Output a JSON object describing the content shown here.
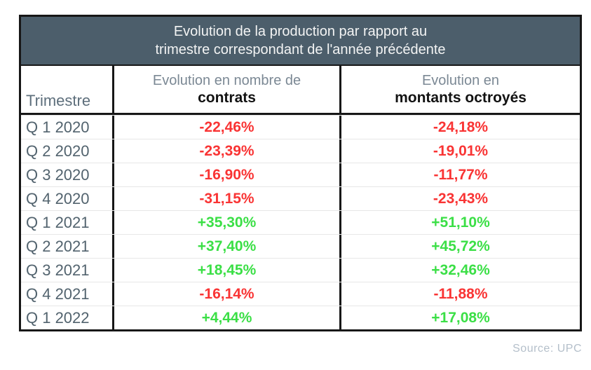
{
  "table": {
    "title_line1": "Evolution de la production par rapport au",
    "title_line2": "trimestre correspondant de l'année précédente",
    "columns": {
      "quarter": "Trimestre",
      "contracts_line1": "Evolution en nombre de",
      "contracts_line2": "contrats",
      "amounts_line1": "Evolution en",
      "amounts_line2": "montants octroyés"
    },
    "rows": [
      {
        "quarter": "Q 1 2020",
        "contracts": "-22,46%",
        "amounts": "-24,18%"
      },
      {
        "quarter": "Q 2 2020",
        "contracts": "-23,39%",
        "amounts": "-19,01%"
      },
      {
        "quarter": "Q 3 2020",
        "contracts": "-16,90%",
        "amounts": "-11,77%"
      },
      {
        "quarter": "Q 4 2020",
        "contracts": "-31,15%",
        "amounts": "-23,43%"
      },
      {
        "quarter": "Q 1 2021",
        "contracts": "+35,30%",
        "amounts": "+51,10%"
      },
      {
        "quarter": "Q 2 2021",
        "contracts": "+37,40%",
        "amounts": "+45,72%"
      },
      {
        "quarter": "Q 3 2021",
        "contracts": "+18,45%",
        "amounts": "+32,46%"
      },
      {
        "quarter": "Q 4 2021",
        "contracts": "-16,14%",
        "amounts": "-11,88%"
      },
      {
        "quarter": "Q 1 2022",
        "contracts": "+4,44%",
        "amounts": "+17,08%"
      }
    ]
  },
  "footer": {
    "source": "Source: UPC"
  },
  "colors": {
    "title_bar_background": "#4c5e6b",
    "title_text": "#f3f4f4",
    "negative_value": "#f93434",
    "positive_value": "#3bdf46",
    "border": "#171717",
    "quarter_label_text": "#52636e",
    "source_text": "#b4bfca"
  },
  "chart_data": {
    "type": "table",
    "title": "Evolution de la production par rapport au trimestre correspondant de l'année précédente",
    "columns": [
      "Trimestre",
      "Evolution en nombre de contrats",
      "Evolution en montants octroyés"
    ],
    "categories": [
      "Q 1 2020",
      "Q 2 2020",
      "Q 3 2020",
      "Q 4 2020",
      "Q 1 2021",
      "Q 2 2021",
      "Q 3 2021",
      "Q 4 2021",
      "Q 1 2022"
    ],
    "series": [
      {
        "name": "Evolution en nombre de contrats (%)",
        "values": [
          -22.46,
          -23.39,
          -16.9,
          -31.15,
          35.3,
          37.4,
          18.45,
          -16.14,
          4.44
        ]
      },
      {
        "name": "Evolution en montants octroyés (%)",
        "values": [
          -24.18,
          -19.01,
          -11.77,
          -23.43,
          51.1,
          45.72,
          32.46,
          -11.88,
          17.08
        ]
      }
    ],
    "value_format": "percent, comma decimal separator, sign prefix",
    "source": "UPC"
  }
}
